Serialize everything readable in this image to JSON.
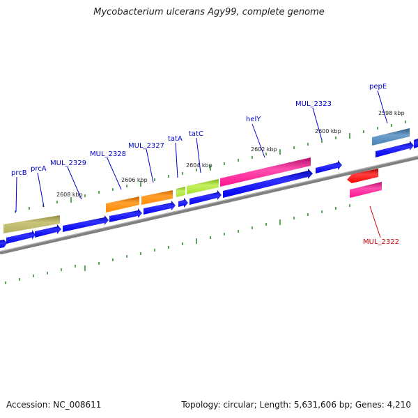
{
  "title": "Mycobacterium ulcerans Agy99, complete genome",
  "footer": {
    "accession": "Accession: NC_008611",
    "summary": "Topology: circular; Length: 5,631,606 bp; Genes: 4,210"
  },
  "kbp_labels": [
    "2608 kbp",
    "2606 kbp",
    "2604 kbp",
    "2602 kbp",
    "2600 kbp",
    "2598 kbp"
  ],
  "gene_labels": [
    {
      "text": "prcB",
      "color": "#0000cc"
    },
    {
      "text": "prcA",
      "color": "#0000cc"
    },
    {
      "text": "MUL_2329",
      "color": "#0000cc"
    },
    {
      "text": "MUL_2328",
      "color": "#0000cc"
    },
    {
      "text": "MUL_2327",
      "color": "#0000cc"
    },
    {
      "text": "tatA",
      "color": "#0000cc"
    },
    {
      "text": "tatC",
      "color": "#0000cc"
    },
    {
      "text": "helY",
      "color": "#0000cc"
    },
    {
      "text": "MUL_2323",
      "color": "#0000cc"
    },
    {
      "text": "pepE",
      "color": "#0000cc"
    },
    {
      "text": "MUL_2322",
      "color": "#cc0000"
    }
  ],
  "colors": {
    "cds": "#0000ee",
    "backbone": "#808080",
    "tick": "#228b22",
    "olive": "#b5b060",
    "orange": "#ff8c00",
    "yellowgreen": "#a6e22e",
    "pink": "#ff1493",
    "steelblue": "#4682b4",
    "red": "#ff0000"
  }
}
